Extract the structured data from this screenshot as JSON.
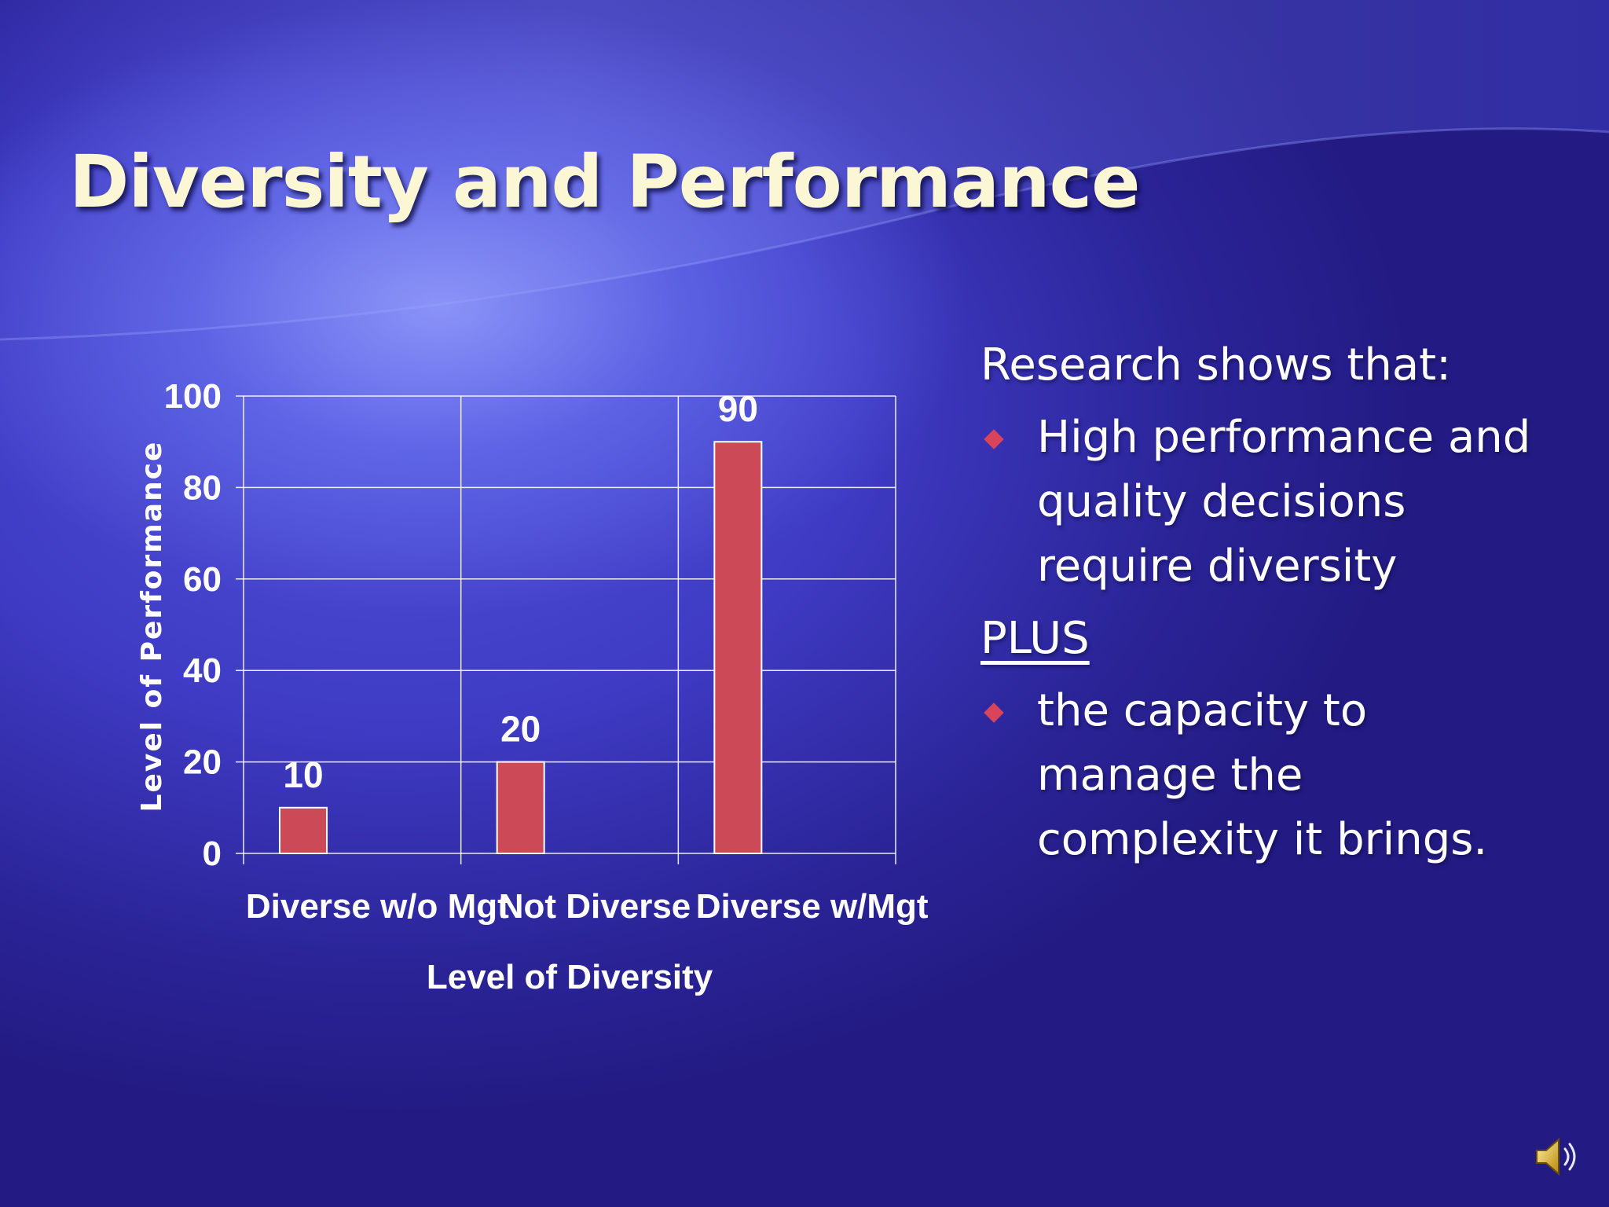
{
  "slide": {
    "title": "Diversity and Performance"
  },
  "text_panel": {
    "intro": "Research shows that:",
    "bullet1_lines": [
      "High performance and",
      "quality decisions",
      "require diversity"
    ],
    "plus": "PLUS",
    "bullet2_lines": [
      "the capacity to",
      "manage the",
      "complexity it brings."
    ]
  },
  "colors": {
    "bar": "#cc4a57",
    "title": "#fbf6d3",
    "bullet": "#d8455a",
    "grid": "#ffffff"
  },
  "icons": {
    "speaker": "speaker-icon"
  },
  "chart_data": {
    "type": "bar",
    "categories": [
      "Diverse w/o Mgt",
      "Not Diverse",
      "Diverse w/Mgt"
    ],
    "values": [
      10,
      20,
      90
    ],
    "data_labels": [
      "10",
      "20",
      "90"
    ],
    "xlabel": "Level of Diversity",
    "ylabel": "Level of Performance",
    "ylim": [
      0,
      100
    ],
    "yticks": [
      0,
      20,
      40,
      60,
      80,
      100
    ],
    "grid": true,
    "legend": "none"
  }
}
